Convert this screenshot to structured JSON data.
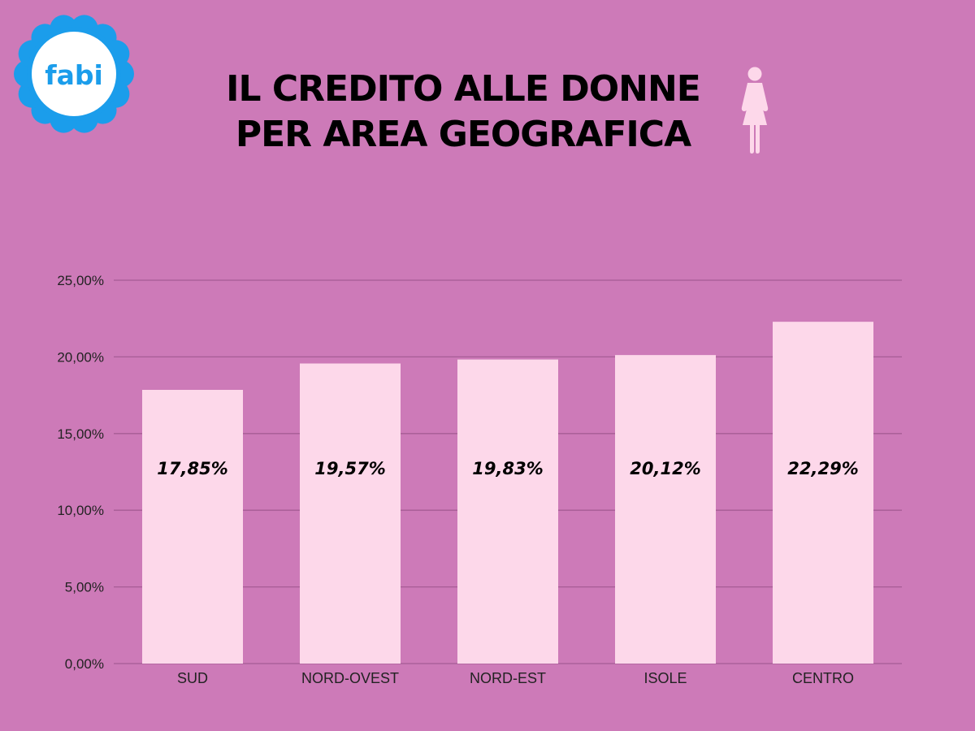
{
  "colors": {
    "background": "#CD7AB8",
    "bar": "#FDD8EA",
    "gridline": "#A65C95",
    "axis_text": "#222222",
    "icon": "#FDD8EA",
    "logo_petal": "#1B9DEB",
    "logo_text": "#1B9DEB"
  },
  "logo": {
    "text": "fabi",
    "icon": "flower-logo"
  },
  "title": {
    "line1": "IL CREDITO ALLE DONNE",
    "line2": "PER AREA GEOGRAFICA",
    "icon": "woman-icon"
  },
  "chart_data": {
    "type": "bar",
    "categories": [
      "SUD",
      "NORD-OVEST",
      "NORD-EST",
      "ISOLE",
      "CENTRO"
    ],
    "values": [
      17.85,
      19.57,
      19.83,
      20.12,
      22.29
    ],
    "value_labels": [
      "17,85%",
      "19,57%",
      "19,83%",
      "20,12%",
      "22,29%"
    ],
    "ylim": [
      0,
      25
    ],
    "yticks": [
      0,
      5,
      10,
      15,
      20,
      25
    ],
    "ytick_labels": [
      "0,00%",
      "5,00%",
      "10,00%",
      "15,00%",
      "20,00%",
      "25,00%"
    ],
    "grid": true,
    "legend": "none"
  }
}
